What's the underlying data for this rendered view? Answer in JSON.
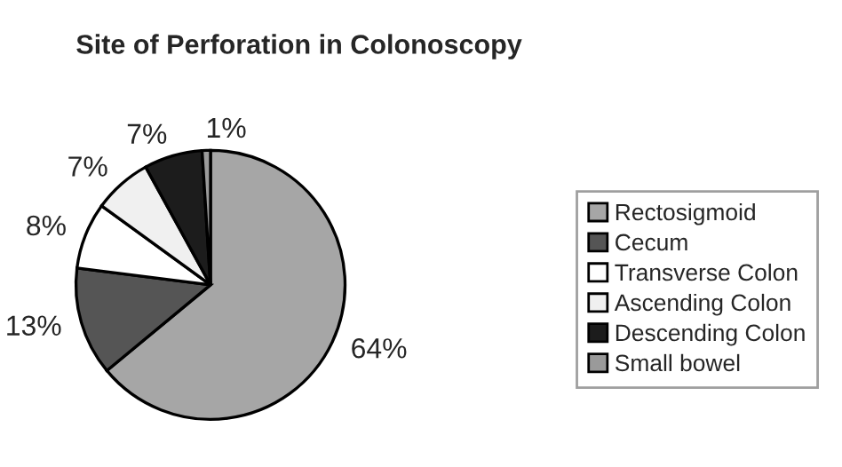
{
  "chart_data": {
    "type": "pie",
    "title": "Site of Perforation in Colonoscopy",
    "categories": [
      "Rectosigmoid",
      "Cecum",
      "Transverse Colon",
      "Ascending Colon",
      "Descending Colon",
      "Small bowel"
    ],
    "values": [
      64,
      13,
      8,
      7,
      7,
      1
    ],
    "colors": [
      "#a6a6a6",
      "#555555",
      "#ffffff",
      "#f0f0f0",
      "#1c1c1c",
      "#9a9a9a"
    ],
    "value_labels": [
      "64%",
      "13%",
      "8%",
      "7%",
      "7%",
      "1%"
    ],
    "legend": "right"
  }
}
